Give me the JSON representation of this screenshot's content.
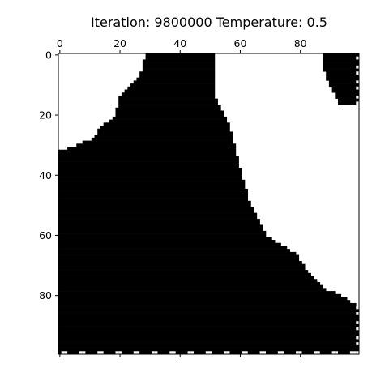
{
  "chart_data": {
    "type": "heatmap",
    "title": "Iteration: 9800000 Temperature: 0.5",
    "xlabel": "",
    "ylabel": "",
    "x_ticks_position": "top-and-bottom",
    "xlim": [
      0,
      99
    ],
    "ylim": [
      99,
      0
    ],
    "x_tick_labels": [
      "0",
      "20",
      "40",
      "60",
      "80"
    ],
    "y_tick_labels": [
      "0",
      "20",
      "40",
      "60",
      "80"
    ],
    "x_tick_values": [
      0,
      20,
      40,
      60,
      80
    ],
    "y_tick_values": [
      0,
      20,
      40,
      60,
      80
    ],
    "bottom_tick_values": [
      0,
      20,
      40,
      60,
      80
    ],
    "grid_size": [
      100,
      100
    ],
    "colors": {
      "spin_up": "#ffffff",
      "spin_down": "#000000"
    },
    "down_region_boundary_by_row": {
      "description_rows": [
        0,
        7,
        14,
        20,
        24,
        28,
        32,
        40,
        50,
        60,
        66,
        72,
        78,
        80,
        84,
        99
      ],
      "left_edge_col": [
        29,
        27,
        20,
        19,
        14,
        11,
        0,
        0,
        0,
        0,
        0,
        0,
        0,
        0,
        0,
        0
      ],
      "right_edge_col": [
        51,
        51,
        51,
        54,
        56,
        57,
        58,
        60,
        63,
        68,
        78,
        82,
        88,
        93,
        99,
        99
      ]
    },
    "top_right_down_patch": {
      "rows": [
        0,
        4,
        8,
        12,
        16
      ],
      "left_col": [
        88,
        88,
        89,
        91,
        93
      ],
      "right_col": [
        99,
        99,
        99,
        99,
        99
      ]
    },
    "dotted_border": {
      "right_col": 99,
      "bottom_row": 99
    }
  }
}
